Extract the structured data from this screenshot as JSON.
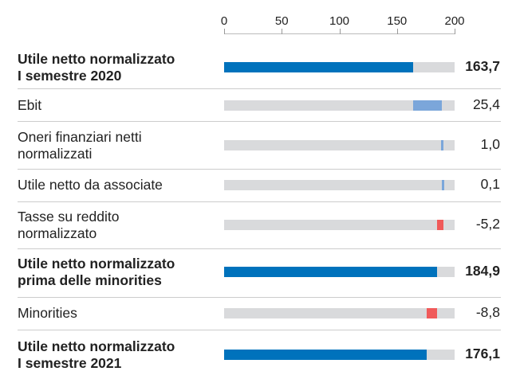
{
  "chart_data": {
    "type": "waterfall",
    "axis": {
      "ticks": [
        "0",
        "50",
        "100",
        "150",
        "200"
      ],
      "range": [
        0,
        200
      ]
    },
    "colors": {
      "total": "#0072bc",
      "increase": "#7ba6da",
      "decrease": "#f05a5a",
      "track": "#d9dadc"
    },
    "rows": [
      {
        "label": [
          "Utile netto normalizzato",
          "I semestre 2020"
        ],
        "value": 163.7,
        "value_label": "163,7",
        "kind": "total",
        "bold": true
      },
      {
        "label": [
          "Ebit"
        ],
        "value": 25.4,
        "value_label": "25,4",
        "kind": "increase",
        "bold": false
      },
      {
        "label": [
          "Oneri finanziari netti",
          "normalizzati"
        ],
        "value": 1.0,
        "value_label": "1,0",
        "kind": "increase",
        "bold": false
      },
      {
        "label": [
          "Utile netto da associate"
        ],
        "value": 0.1,
        "value_label": "0,1",
        "kind": "increase",
        "bold": false
      },
      {
        "label": [
          "Tasse su reddito",
          "normalizzato"
        ],
        "value": -5.2,
        "value_label": "-5,2",
        "kind": "decrease",
        "bold": false
      },
      {
        "label": [
          "Utile netto normalizzato",
          "prima delle minorities"
        ],
        "value": 184.9,
        "value_label": "184,9",
        "kind": "total",
        "bold": true
      },
      {
        "label": [
          "Minorities"
        ],
        "value": -8.8,
        "value_label": "-8,8",
        "kind": "decrease",
        "bold": false
      },
      {
        "label": [
          "Utile netto normalizzato",
          "I semestre 2021"
        ],
        "value": 176.1,
        "value_label": "176,1",
        "kind": "total",
        "bold": true
      }
    ]
  }
}
